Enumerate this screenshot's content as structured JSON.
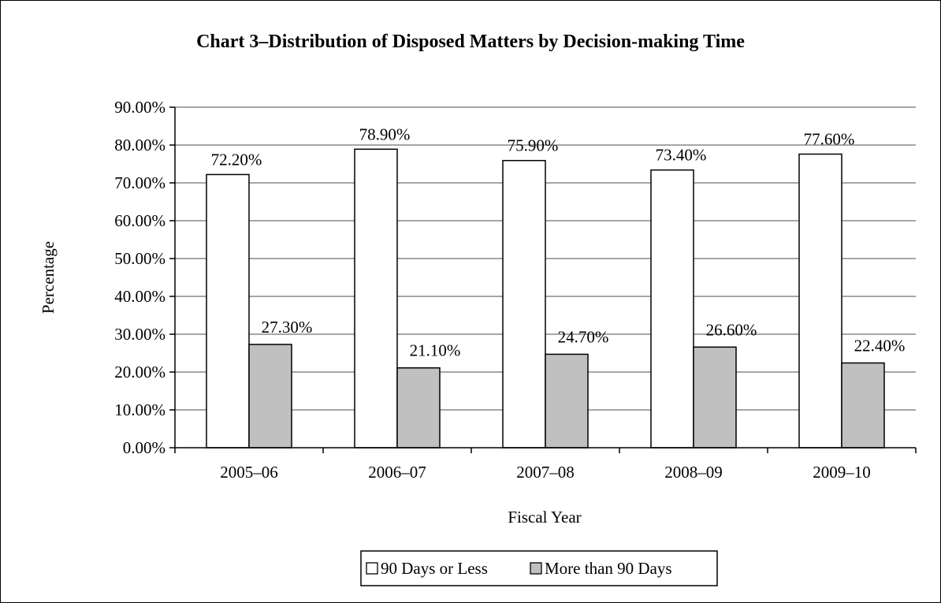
{
  "chart_data": {
    "type": "bar",
    "title": "Chart 3–Distribution of Disposed Matters by Decision-making Time",
    "xlabel": "Fiscal Year",
    "ylabel": "Percentage",
    "categories": [
      "2005–06",
      "2006–07",
      "2007–08",
      "2008–09",
      "2009–10"
    ],
    "series": [
      {
        "name": "90 Days or Less",
        "values": [
          72.2,
          78.9,
          75.9,
          73.4,
          77.6
        ],
        "labels": [
          "72.20%",
          "78.90%",
          "75.90%",
          "73.40%",
          "77.60%"
        ],
        "color": "#ffffff"
      },
      {
        "name": "More than 90 Days",
        "values": [
          27.3,
          21.1,
          24.7,
          26.6,
          22.4
        ],
        "labels": [
          "27.30%",
          "21.10%",
          "24.70%",
          "26.60%",
          "22.40%"
        ],
        "color": "#c0c0c0"
      }
    ],
    "ylim": [
      0,
      90
    ],
    "yticks": [
      0,
      10,
      20,
      30,
      40,
      50,
      60,
      70,
      80,
      90
    ],
    "ytick_labels": [
      "0.00%",
      "10.00%",
      "20.00%",
      "30.00%",
      "40.00%",
      "50.00%",
      "60.00%",
      "70.00%",
      "80.00%",
      "90.00%"
    ],
    "grid": true,
    "legend": "bottom-center"
  }
}
